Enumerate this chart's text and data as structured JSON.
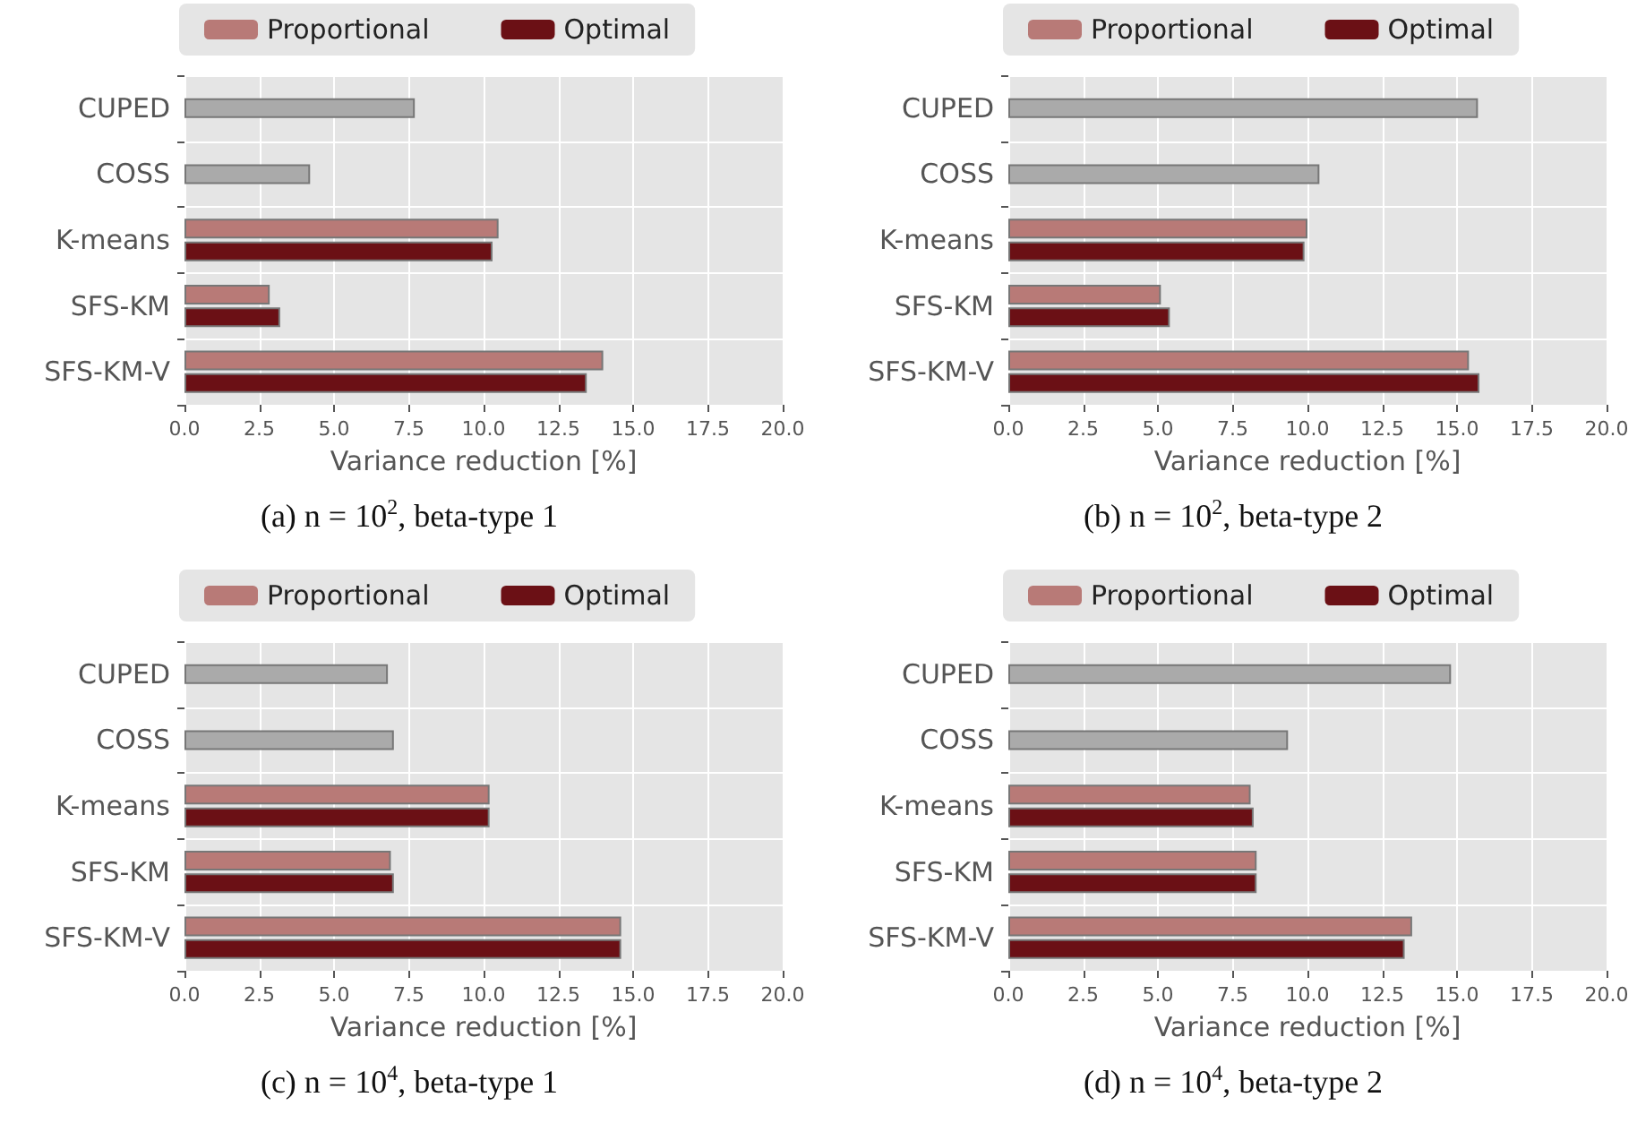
{
  "chart_data": [
    {
      "type": "bar",
      "orientation": "horizontal",
      "title": "(a) n = 10$^{2}$, beta-type 1",
      "xlabel": "Variance reduction [%]",
      "categories": [
        "CUPED",
        "COSS",
        "K-means",
        "SFS-KM",
        "SFS-KM-V"
      ],
      "series": [
        {
          "color": "#aaaaaa",
          "values": [
            7.7,
            4.2,
            null,
            null,
            null
          ]
        },
        {
          "name": "Proportional",
          "color": "#b87a77",
          "values": [
            null,
            null,
            10.5,
            2.85,
            14.0
          ]
        },
        {
          "name": "Optimal",
          "color": "#6b1015",
          "values": [
            null,
            null,
            10.3,
            3.2,
            13.45
          ]
        }
      ],
      "xlim": [
        0,
        20
      ],
      "xticks": [
        {
          "value": 0,
          "label": "0.0"
        },
        {
          "value": 2.5,
          "label": "2.5"
        },
        {
          "value": 5,
          "label": "5.0"
        },
        {
          "value": 7.5,
          "label": "7.5"
        },
        {
          "value": 10,
          "label": "10.0"
        },
        {
          "value": 12.5,
          "label": "12.5"
        },
        {
          "value": 15,
          "label": "15.0"
        },
        {
          "value": 17.5,
          "label": "17.5"
        },
        {
          "value": 20,
          "label": "20.0"
        }
      ],
      "grid": true,
      "legend": "top"
    },
    {
      "type": "bar",
      "orientation": "horizontal",
      "title": "(b) n = 10$^{2}$, beta-type 2",
      "xlabel": "Variance reduction [%]",
      "categories": [
        "CUPED",
        "COSS",
        "K-means",
        "SFS-KM",
        "SFS-KM-V"
      ],
      "series": [
        {
          "color": "#aaaaaa",
          "values": [
            15.7,
            10.4,
            null,
            null,
            null
          ]
        },
        {
          "name": "Proportional",
          "color": "#b87a77",
          "values": [
            null,
            null,
            10.0,
            5.1,
            15.4
          ]
        },
        {
          "name": "Optimal",
          "color": "#6b1015",
          "values": [
            null,
            null,
            9.9,
            5.4,
            15.75
          ]
        }
      ],
      "xlim": [
        0,
        20
      ],
      "xticks": [
        {
          "value": 0,
          "label": "0.0"
        },
        {
          "value": 2.5,
          "label": "2.5"
        },
        {
          "value": 5,
          "label": "5.0"
        },
        {
          "value": 7.5,
          "label": "7.5"
        },
        {
          "value": 10,
          "label": "10.0"
        },
        {
          "value": 12.5,
          "label": "12.5"
        },
        {
          "value": 15,
          "label": "15.0"
        },
        {
          "value": 17.5,
          "label": "17.5"
        },
        {
          "value": 20,
          "label": "20.0"
        }
      ],
      "grid": true,
      "legend": "top"
    },
    {
      "type": "bar",
      "orientation": "horizontal",
      "title": "(c) n = 10$^{4}$, beta-type 1",
      "xlabel": "Variance reduction [%]",
      "categories": [
        "CUPED",
        "COSS",
        "K-means",
        "SFS-KM",
        "SFS-KM-V"
      ],
      "series": [
        {
          "color": "#aaaaaa",
          "values": [
            6.8,
            7.0,
            null,
            null,
            null
          ]
        },
        {
          "name": "Proportional",
          "color": "#b87a77",
          "values": [
            null,
            null,
            10.2,
            6.9,
            14.6
          ]
        },
        {
          "name": "Optimal",
          "color": "#6b1015",
          "values": [
            null,
            null,
            10.2,
            7.0,
            14.6
          ]
        }
      ],
      "xlim": [
        0,
        20
      ],
      "xticks": [
        {
          "value": 0,
          "label": "0.0"
        },
        {
          "value": 2.5,
          "label": "2.5"
        },
        {
          "value": 5,
          "label": "5.0"
        },
        {
          "value": 7.5,
          "label": "7.5"
        },
        {
          "value": 10,
          "label": "10.0"
        },
        {
          "value": 12.5,
          "label": "12.5"
        },
        {
          "value": 15,
          "label": "15.0"
        },
        {
          "value": 17.5,
          "label": "17.5"
        },
        {
          "value": 20,
          "label": "20.0"
        }
      ],
      "grid": true,
      "legend": "top"
    },
    {
      "type": "bar",
      "orientation": "horizontal",
      "title": "(d) n = 10$^{4}$, beta-type 2",
      "xlabel": "Variance reduction [%]",
      "categories": [
        "CUPED",
        "COSS",
        "K-means",
        "SFS-KM",
        "SFS-KM-V"
      ],
      "series": [
        {
          "color": "#aaaaaa",
          "values": [
            14.8,
            9.35,
            null,
            null,
            null
          ]
        },
        {
          "name": "Proportional",
          "color": "#b87a77",
          "values": [
            null,
            null,
            8.1,
            8.3,
            13.5
          ]
        },
        {
          "name": "Optimal",
          "color": "#6b1015",
          "values": [
            null,
            null,
            8.2,
            8.3,
            13.25
          ]
        }
      ],
      "xlim": [
        0,
        20
      ],
      "xticks": [
        {
          "value": 0,
          "label": "0.0"
        },
        {
          "value": 2.5,
          "label": "2.5"
        },
        {
          "value": 5,
          "label": "5.0"
        },
        {
          "value": 7.5,
          "label": "7.5"
        },
        {
          "value": 10,
          "label": "10.0"
        },
        {
          "value": 12.5,
          "label": "12.5"
        },
        {
          "value": 15,
          "label": "15.0"
        },
        {
          "value": 17.5,
          "label": "17.5"
        },
        {
          "value": 20,
          "label": "20.0"
        }
      ],
      "grid": true,
      "legend": "top"
    }
  ]
}
